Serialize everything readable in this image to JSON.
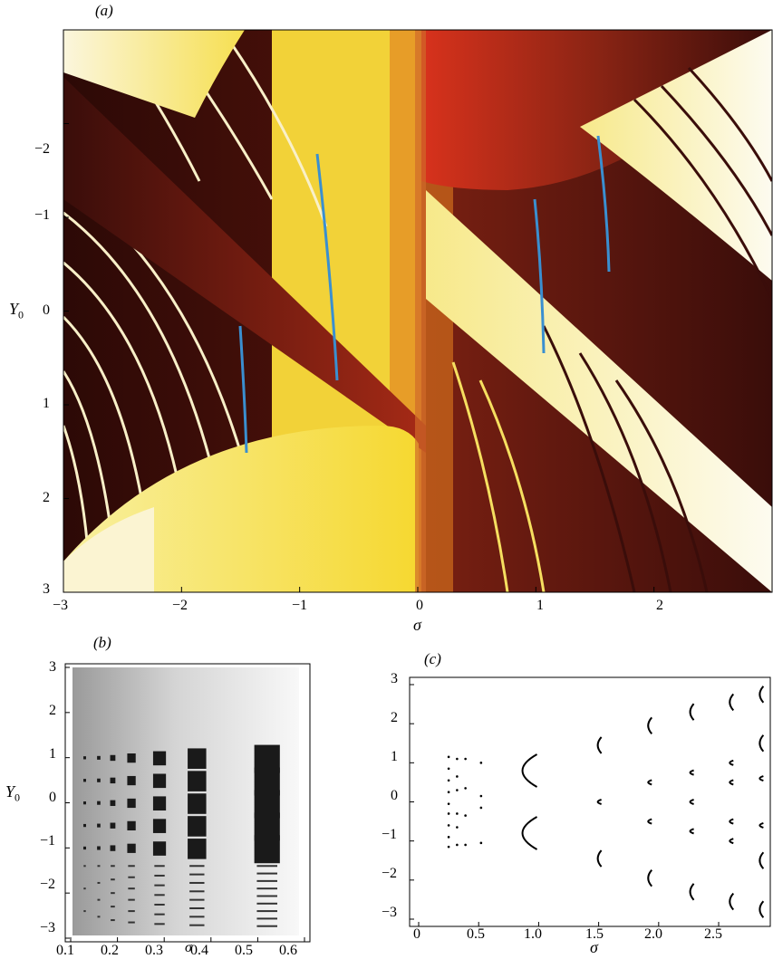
{
  "panel_a": {
    "label": "(a)",
    "xlabel": "σ",
    "ylabel": "Y",
    "ylabel_sub": "0",
    "x_ticks": [
      "−3",
      "−2",
      "−1",
      "0",
      "1",
      "2"
    ],
    "y_ticks": [
      "−2",
      "−1",
      "0",
      "1",
      "2",
      "3"
    ],
    "colors": {
      "dark": "#3a0d0a",
      "maroon": "#6e1a10",
      "red": "#c5301a",
      "orange": "#e0a020",
      "yellow": "#f6e040",
      "cream": "#fbf6da",
      "blue": "#3a8fd0"
    }
  },
  "panel_b": {
    "label": "(b)",
    "xlabel": "σ",
    "ylabel": "Y",
    "ylabel_sub": "0",
    "x_ticks": [
      "0.1",
      "0.2",
      "0.3",
      "0.4",
      "0.5",
      "0.6"
    ],
    "y_ticks": [
      "3",
      "2",
      "1",
      "0",
      "−1",
      "−2",
      "−3"
    ]
  },
  "panel_c": {
    "label": "(c)",
    "xlabel": "σ",
    "x_ticks": [
      "0",
      "0.5",
      "1.0",
      "1.5",
      "2.0",
      "2.5"
    ],
    "y_ticks": [
      "3",
      "2",
      "1",
      "0",
      "−1",
      "−2",
      "−3"
    ]
  },
  "chart_data": [
    {
      "type": "heatmap",
      "panel": "a",
      "xlim": [
        -3,
        3
      ],
      "ylim": [
        3,
        -3
      ],
      "y_axis_inverted": true
    },
    {
      "type": "heatmap",
      "panel": "b",
      "xlim": [
        0.1,
        0.6
      ],
      "ylim": [
        -3,
        3
      ],
      "island_columns_sigma": [
        0.13,
        0.16,
        0.19,
        0.23,
        0.29,
        0.37,
        0.52
      ],
      "island_rows_Y0": [
        1,
        0.5,
        0,
        -0.5,
        -1
      ]
    },
    {
      "type": "scatter",
      "panel": "c",
      "xlim": [
        0,
        2.9
      ],
      "ylim": [
        -3,
        3
      ],
      "columns": [
        {
          "sigma": 0.25,
          "Y0": [
            1.15,
            0.85,
            0.55,
            0.25,
            -0.05,
            -0.3,
            -0.6,
            -0.9,
            -1.15
          ]
        },
        {
          "sigma": 0.32,
          "Y0": [
            1.1,
            0.65,
            0.3,
            -0.3,
            -0.65,
            -1.1
          ]
        },
        {
          "sigma": 0.39,
          "Y0": [
            1.1,
            0.35,
            -0.35,
            -1.1
          ]
        },
        {
          "sigma": 0.52,
          "Y0": [
            1.0,
            0.15,
            -0.15,
            -1.05
          ]
        },
        {
          "sigma": 0.88,
          "Y0": [
            0.8,
            -0.8
          ]
        },
        {
          "sigma": 1.5,
          "Y0": [
            1.45,
            0.0,
            -1.45
          ]
        },
        {
          "sigma": 1.92,
          "Y0": [
            1.95,
            0.5,
            -0.5,
            -1.95
          ]
        },
        {
          "sigma": 2.27,
          "Y0": [
            2.3,
            0.75,
            0.0,
            -0.75,
            -2.3
          ]
        },
        {
          "sigma": 2.6,
          "Y0": [
            2.55,
            1.0,
            0.5,
            -0.5,
            -1.0,
            -2.55
          ]
        },
        {
          "sigma": 2.85,
          "Y0": [
            2.75,
            1.5,
            0.6,
            -0.6,
            -1.5,
            -2.75
          ]
        }
      ]
    }
  ]
}
